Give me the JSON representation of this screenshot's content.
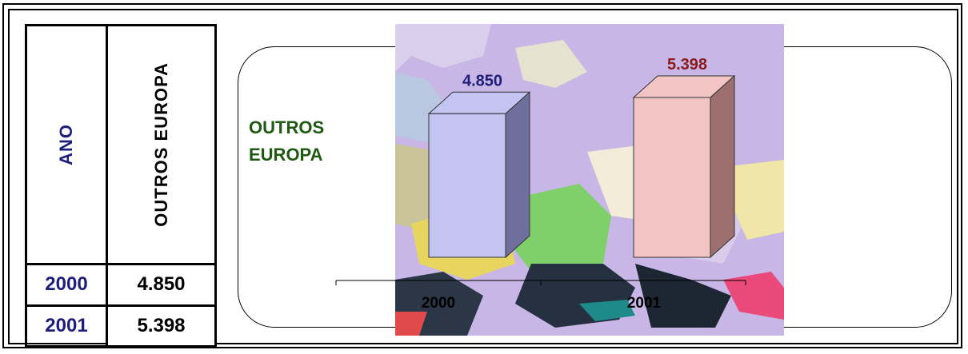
{
  "table": {
    "header_year": "ANO",
    "header_series": "OUTROS EUROPA",
    "rows": [
      {
        "year": "2000",
        "value": "4.850"
      },
      {
        "year": "2001",
        "value": "5.398"
      }
    ]
  },
  "chart_data": {
    "type": "bar",
    "style": "3d",
    "categories": [
      "2000",
      "2001"
    ],
    "values": [
      4850,
      5398
    ],
    "data_labels": [
      "4.850",
      "5.398"
    ],
    "series": [
      {
        "name": "OUTROS EUROPA",
        "values": [
          4850,
          5398
        ]
      }
    ],
    "title": "",
    "xlabel": "",
    "ylabel": "",
    "legend_title_lines": [
      "OUTROS",
      "EUROPA"
    ],
    "grid": false,
    "colors": {
      "bar_2000": "#c4c4f2",
      "bar_2000_side": "#6f6f9e",
      "bar_2001": "#f2c4c4",
      "bar_2001_side": "#9e6f6f",
      "label_2000": "#1f1d7a",
      "label_2001": "#8b1a1a",
      "series_title": "#1e5a12"
    }
  }
}
